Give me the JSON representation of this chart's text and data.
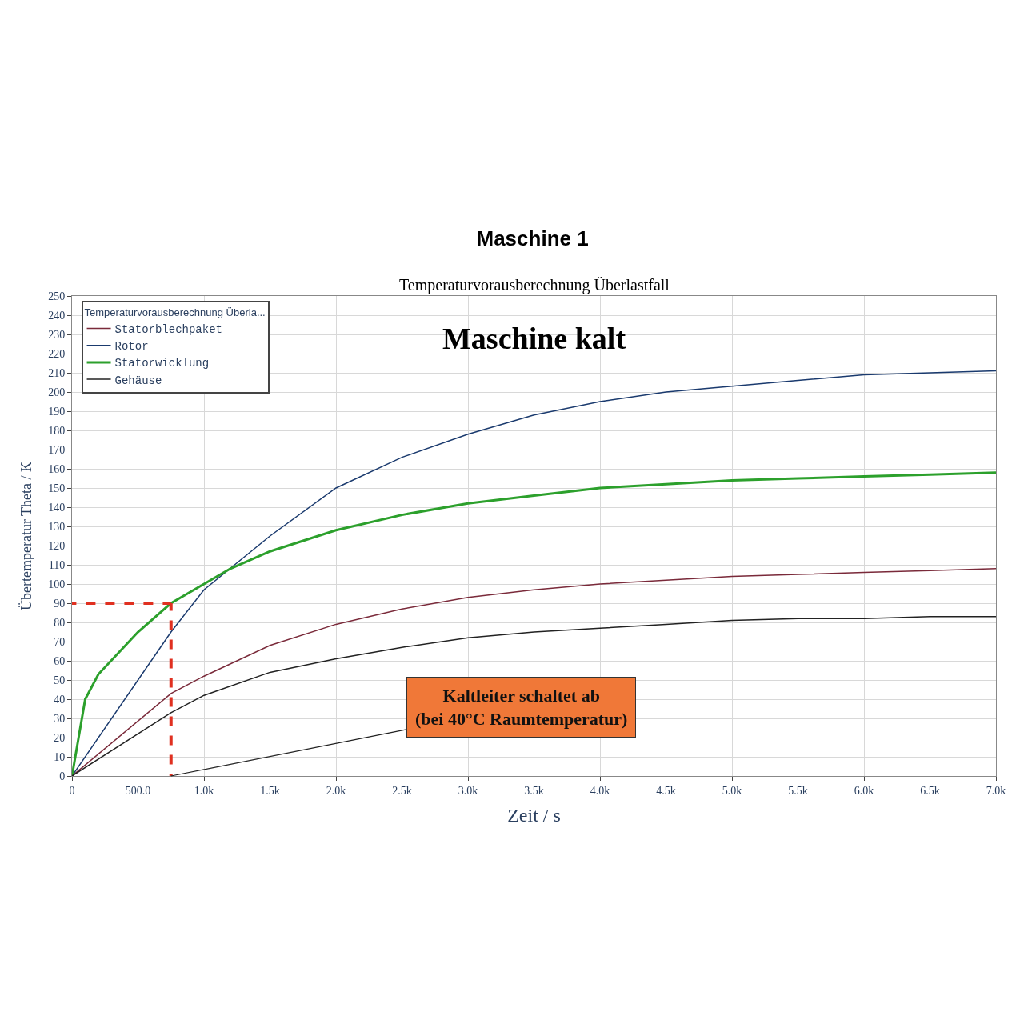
{
  "chart_data": {
    "type": "line",
    "title": "Maschine 1",
    "subtitle": "Temperaturvorausberechnung Überlastfall",
    "xlabel": "Zeit / s",
    "ylabel": "Übertemperatur Theta / K",
    "legend_title": "Temperaturvorausberechnung Überla...",
    "legend": "top left",
    "grid": true,
    "marker": "none",
    "line_style": "solid",
    "xlim": [
      0,
      7000
    ],
    "ylim": [
      0,
      250
    ],
    "xticks": [
      0,
      {
        "value": 500,
        "label": "500.0"
      },
      {
        "value": 1000,
        "label": "1.0k"
      },
      {
        "value": 1500,
        "label": "1.5k"
      },
      {
        "value": 2000,
        "label": "2.0k"
      },
      {
        "value": 2500,
        "label": "2.5k"
      },
      {
        "value": 3000,
        "label": "3.0k"
      },
      {
        "value": 3500,
        "label": "3.5k"
      },
      {
        "value": 4000,
        "label": "4.0k"
      },
      {
        "value": 4500,
        "label": "4.5k"
      },
      {
        "value": 5000,
        "label": "5.0k"
      },
      {
        "value": 5500,
        "label": "5.5k"
      },
      {
        "value": 6000,
        "label": "6.0k"
      },
      {
        "value": 6500,
        "label": "6.5k"
      },
      {
        "value": 7000,
        "label": "7.0k"
      }
    ],
    "yticks": [
      0,
      10,
      20,
      30,
      40,
      50,
      60,
      70,
      80,
      90,
      100,
      110,
      120,
      130,
      140,
      150,
      160,
      170,
      180,
      190,
      200,
      210,
      220,
      230,
      240,
      250
    ],
    "x": [
      0,
      750,
      1000,
      1500,
      2000,
      2500,
      3000,
      3500,
      4000,
      4500,
      5000,
      5500,
      6000,
      6500,
      7000
    ],
    "series": [
      {
        "name": "Statorblechpaket",
        "color": "#7a2a3a",
        "values": [
          0,
          43,
          52,
          68,
          79,
          87,
          93,
          97,
          100,
          102,
          104,
          105,
          106,
          107,
          108
        ]
      },
      {
        "name": "Rotor",
        "color": "#1a3a6e",
        "values": [
          0,
          75,
          97,
          125,
          150,
          166,
          178,
          188,
          195,
          200,
          203,
          206,
          209,
          210,
          211
        ]
      },
      {
        "name": "Statorwicklung",
        "color": "#2ca02c",
        "x": [
          0,
          100,
          200,
          500,
          750,
          1000,
          1200,
          1500,
          2000,
          2500,
          3000,
          3500,
          4000,
          4500,
          5000,
          5500,
          6000,
          6500,
          7000
        ],
        "values": [
          0,
          40,
          53,
          75,
          90,
          100,
          108,
          117,
          128,
          136,
          142,
          146,
          150,
          152,
          154,
          155,
          156,
          157,
          158
        ]
      },
      {
        "name": "Gehäuse",
        "color": "#222222",
        "values": [
          0,
          33,
          42,
          54,
          61,
          67,
          72,
          75,
          77,
          79,
          81,
          82,
          82,
          83,
          83
        ]
      }
    ],
    "ref_lines": [
      {
        "axis": "x",
        "value": 750,
        "color": "#e03020",
        "line_style": "dashed"
      },
      {
        "axis": "y",
        "value": 90,
        "color": "#e03020",
        "line_style": "dashed"
      }
    ],
    "annotations": [
      "Maschine kalt",
      {
        "text": "Kaltleiter schaltet ab\n(bei 40°C Raumtemperatur)",
        "x": 750,
        "y": 0
      }
    ]
  }
}
